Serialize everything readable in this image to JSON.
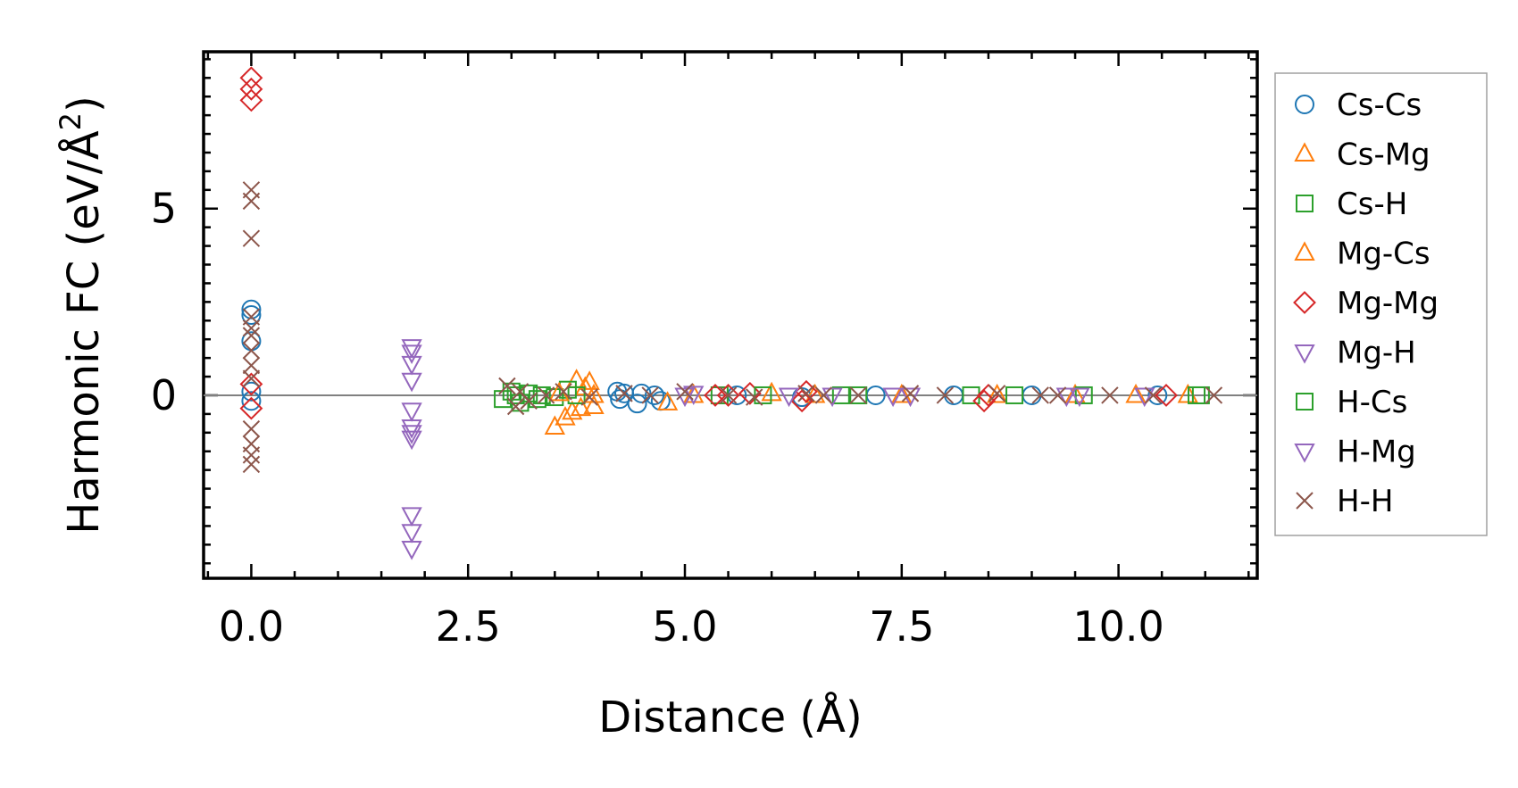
{
  "chart_data": {
    "type": "scatter",
    "xlabel": "Distance (Å)",
    "ylabel_main": "Harmonic FC (eV/Å",
    "ylabel_sup": "2",
    "ylabel_close": ")",
    "xlim": [
      -0.55,
      11.6
    ],
    "ylim": [
      -4.9,
      9.2
    ],
    "xticks": [
      0.0,
      2.5,
      5.0,
      7.5,
      10.0
    ],
    "xtick_labels": [
      "0.0",
      "2.5",
      "5.0",
      "7.5",
      "10.0"
    ],
    "yticks": [
      0,
      5
    ],
    "ytick_labels": [
      "0",
      "5"
    ],
    "zero_line": true,
    "grid": false,
    "legend_position": "right, outside",
    "series": [
      {
        "name": "Cs-Cs",
        "marker": "circle",
        "color": "#1f77b4",
        "points": [
          [
            0,
            2.3
          ],
          [
            0,
            2.15
          ],
          [
            0,
            1.45
          ],
          [
            0,
            0.1
          ],
          [
            0,
            -0.15
          ],
          [
            4.22,
            0.1
          ],
          [
            4.25,
            -0.1
          ],
          [
            4.3,
            0.05
          ],
          [
            4.45,
            -0.22
          ],
          [
            4.5,
            0.05
          ],
          [
            4.65,
            0.0
          ],
          [
            4.72,
            -0.15
          ],
          [
            5.6,
            0.0
          ],
          [
            6.35,
            -0.05
          ],
          [
            7.2,
            0.0
          ],
          [
            8.1,
            0.0
          ],
          [
            9.0,
            0.0
          ],
          [
            10.45,
            0.0
          ]
        ]
      },
      {
        "name": "Cs-Mg",
        "marker": "triangle-up",
        "color": "#ff7f0e",
        "points": [
          [
            3.5,
            -0.85
          ],
          [
            3.62,
            -0.6
          ],
          [
            3.7,
            -0.45
          ],
          [
            3.75,
            0.4
          ],
          [
            3.8,
            -0.35
          ],
          [
            3.85,
            0.2
          ],
          [
            3.9,
            0.35
          ],
          [
            3.95,
            -0.3
          ],
          [
            4.8,
            -0.2
          ],
          [
            6.0,
            0.05
          ],
          [
            7.5,
            0.0
          ],
          [
            9.5,
            0.0
          ],
          [
            10.8,
            0.0
          ]
        ]
      },
      {
        "name": "Cs-H",
        "marker": "square",
        "color": "#2ca02c",
        "points": [
          [
            2.9,
            -0.1
          ],
          [
            3.0,
            0.1
          ],
          [
            3.1,
            -0.2
          ],
          [
            3.2,
            0.05
          ],
          [
            3.35,
            0.0
          ],
          [
            3.5,
            -0.05
          ],
          [
            3.65,
            0.15
          ],
          [
            3.75,
            0.0
          ],
          [
            5.4,
            0.0
          ],
          [
            6.8,
            0.0
          ],
          [
            8.3,
            0.0
          ],
          [
            9.6,
            0.0
          ],
          [
            10.9,
            0.0
          ]
        ]
      },
      {
        "name": "Mg-Cs",
        "marker": "triangle-up",
        "color": "#ff7f0e",
        "points": [
          [
            3.55,
            0.05
          ],
          [
            3.95,
            0.0
          ],
          [
            5.1,
            0.0
          ],
          [
            6.5,
            0.0
          ],
          [
            8.6,
            0.0
          ],
          [
            10.2,
            0.0
          ]
        ]
      },
      {
        "name": "Mg-Mg",
        "marker": "diamond",
        "color": "#d62728",
        "points": [
          [
            0,
            8.5
          ],
          [
            0,
            8.2
          ],
          [
            0,
            7.9
          ],
          [
            0,
            0.3
          ],
          [
            0,
            -0.35
          ],
          [
            5.35,
            0.0
          ],
          [
            5.5,
            0.0
          ],
          [
            5.75,
            0.05
          ],
          [
            6.35,
            -0.15
          ],
          [
            6.4,
            0.1
          ],
          [
            8.45,
            -0.15
          ],
          [
            8.5,
            0.0
          ],
          [
            10.55,
            0.0
          ]
        ]
      },
      {
        "name": "Mg-H",
        "marker": "triangle-down",
        "color": "#9467bd",
        "points": [
          [
            1.85,
            1.3
          ],
          [
            1.85,
            1.15
          ],
          [
            1.85,
            0.85
          ],
          [
            1.85,
            0.4
          ],
          [
            1.85,
            -0.4
          ],
          [
            1.85,
            -0.85
          ],
          [
            1.85,
            -1.0
          ],
          [
            1.85,
            -1.15
          ],
          [
            1.85,
            -3.2
          ],
          [
            1.85,
            -3.65
          ],
          [
            1.85,
            -4.1
          ],
          [
            5.1,
            0.05
          ],
          [
            6.2,
            0.0
          ],
          [
            6.7,
            0.0
          ],
          [
            7.6,
            0.0
          ],
          [
            9.55,
            0.0
          ],
          [
            10.3,
            0.0
          ]
        ]
      },
      {
        "name": "H-Cs",
        "marker": "square",
        "color": "#2ca02c",
        "points": [
          [
            3.05,
            0.0
          ],
          [
            3.3,
            -0.1
          ],
          [
            5.9,
            0.0
          ],
          [
            7.0,
            0.0
          ],
          [
            8.8,
            0.0
          ],
          [
            10.95,
            0.0
          ]
        ]
      },
      {
        "name": "H-Mg",
        "marker": "triangle-down",
        "color": "#9467bd",
        "points": [
          [
            5.0,
            0.0
          ],
          [
            7.4,
            0.0
          ],
          [
            9.4,
            0.0
          ]
        ]
      },
      {
        "name": "H-H",
        "marker": "x",
        "color": "#8c564b",
        "points": [
          [
            0,
            5.5
          ],
          [
            0,
            5.2
          ],
          [
            0,
            4.2
          ],
          [
            0,
            2.1
          ],
          [
            0,
            1.8
          ],
          [
            0,
            1.6
          ],
          [
            0,
            1.2
          ],
          [
            0,
            0.8
          ],
          [
            0,
            0.45
          ],
          [
            0,
            -0.9
          ],
          [
            0,
            -1.3
          ],
          [
            0,
            -1.6
          ],
          [
            0,
            -1.85
          ],
          [
            2.95,
            0.25
          ],
          [
            3.05,
            -0.3
          ],
          [
            3.1,
            0.1
          ],
          [
            3.2,
            -0.15
          ],
          [
            3.4,
            0.0
          ],
          [
            3.6,
            0.1
          ],
          [
            3.9,
            -0.05
          ],
          [
            4.3,
            0.05
          ],
          [
            4.6,
            0.0
          ],
          [
            5.0,
            0.1
          ],
          [
            5.5,
            0.0
          ],
          [
            5.8,
            -0.05
          ],
          [
            6.4,
            0.05
          ],
          [
            6.6,
            0.0
          ],
          [
            7.0,
            0.0
          ],
          [
            7.6,
            0.05
          ],
          [
            8.0,
            0.0
          ],
          [
            8.6,
            0.05
          ],
          [
            9.1,
            0.0
          ],
          [
            9.3,
            0.0
          ],
          [
            9.9,
            0.0
          ],
          [
            10.4,
            0.0
          ],
          [
            11.1,
            0.0
          ]
        ]
      }
    ]
  }
}
